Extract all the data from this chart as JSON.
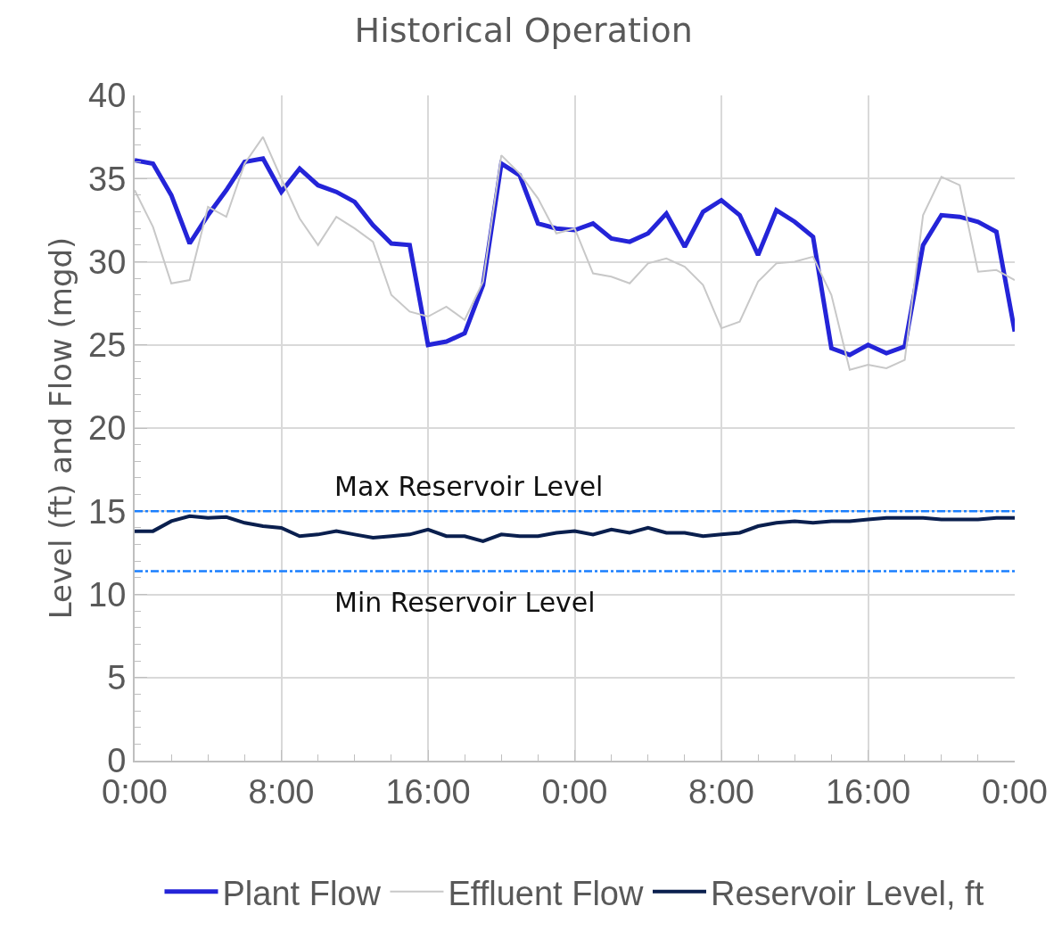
{
  "chart_data": {
    "type": "line",
    "title": "Historical Operation",
    "ylabel": "Level (ft) and Flow (mgd)",
    "x": [
      "--01-01T00:00",
      "--01-01T01:00",
      "--01-01T02:00",
      "--01-01T03:00",
      "--01-01T04:00",
      "--01-01T05:00",
      "--01-01T06:00",
      "--01-01T07:00",
      "--01-01T08:00",
      "--01-01T09:00",
      "--01-01T10:00",
      "--01-01T11:00",
      "--01-01T12:00",
      "--01-01T13:00",
      "--01-01T14:00",
      "--01-01T15:00",
      "--01-01T16:00",
      "--01-01T17:00",
      "--01-01T18:00",
      "--01-01T19:00",
      "--01-01T20:00",
      "--01-01T21:00",
      "--01-01T22:00",
      "--01-01T23:00",
      "--01-02T00:00",
      "--01-02T01:00",
      "--01-02T02:00",
      "--01-02T03:00",
      "--01-02T04:00",
      "--01-02T05:00",
      "--01-02T06:00",
      "--01-02T07:00",
      "--01-02T08:00",
      "--01-02T09:00",
      "--01-02T10:00",
      "--01-02T11:00",
      "--01-02T12:00",
      "--01-02T13:00",
      "--01-02T14:00",
      "--01-02T15:00",
      "--01-02T16:00",
      "--01-02T17:00",
      "--01-02T18:00",
      "--01-02T19:00",
      "--01-02T20:00",
      "--01-02T21:00",
      "--01-02T22:00",
      "--01-02T23:00",
      "--01-03T00:00"
    ],
    "series": [
      {
        "name": "Plant Flow",
        "color": "#2424d8",
        "values": [
          36.1,
          35.9,
          34,
          31.1,
          32.8,
          34.3,
          36,
          36.2,
          34.2,
          35.6,
          34.6,
          34.2,
          33.6,
          32.2,
          31.1,
          31,
          25,
          25.2,
          25.7,
          28.6,
          35.9,
          35.2,
          32.3,
          32,
          31.9,
          32.3,
          31.4,
          31.2,
          31.7,
          32.9,
          30.9,
          33,
          33.7,
          32.8,
          30.4,
          33.1,
          32.4,
          31.5,
          24.8,
          24.4,
          25,
          24.5,
          24.9,
          31,
          32.8,
          32.7,
          32.4,
          31.8,
          25.8
        ]
      },
      {
        "name": "Effluent Flow",
        "color": "#c8c8c8",
        "values": [
          34.3,
          32.1,
          28.7,
          28.9,
          33.3,
          32.7,
          35.9,
          37.5,
          35,
          32.6,
          31,
          32.7,
          32,
          31.2,
          28,
          27,
          26.7,
          27.3,
          26.5,
          28.8,
          36.4,
          35.3,
          33.8,
          31.7,
          32,
          29.3,
          29.1,
          28.7,
          29.9,
          30.2,
          29.7,
          28.6,
          26,
          26.4,
          28.8,
          29.9,
          30,
          30.3,
          28,
          23.5,
          23.8,
          23.6,
          24.1,
          32.8,
          35.1,
          34.6,
          29.4,
          29.5,
          28.9
        ]
      },
      {
        "name": "Reservoir Level, ft",
        "color": "#0a1f4e",
        "values": [
          13.8,
          13.8,
          14.4,
          14.7,
          14.6,
          14.65,
          14.3,
          14.1,
          14,
          13.5,
          13.6,
          13.8,
          13.6,
          13.4,
          13.5,
          13.6,
          13.9,
          13.5,
          13.5,
          13.2,
          13.6,
          13.5,
          13.5,
          13.7,
          13.8,
          13.6,
          13.9,
          13.7,
          14,
          13.7,
          13.7,
          13.5,
          13.6,
          13.7,
          14.1,
          14.3,
          14.4,
          14.3,
          14.4,
          14.4,
          14.5,
          14.6,
          14.6,
          14.6,
          14.5,
          14.5,
          14.5,
          14.6,
          14.6
        ]
      }
    ],
    "xlim": [
      "--01-01T00:00",
      "--01-03T00:00"
    ],
    "xticks": [
      {
        "value": "--01-01T00:00",
        "label": "0:00"
      },
      {
        "value": "--01-01T08:00",
        "label": "8:00"
      },
      {
        "value": "--01-01T16:00",
        "label": "16:00"
      },
      {
        "value": "--01-02T00:00",
        "label": "0:00"
      },
      {
        "value": "--01-02T08:00",
        "label": "8:00"
      },
      {
        "value": "--01-02T16:00",
        "label": "16:00"
      },
      {
        "value": "--01-03T00:00",
        "label": "0:00"
      }
    ],
    "ylim": [
      0,
      40
    ],
    "yticks": [
      0,
      5,
      10,
      15,
      20,
      25,
      30,
      35,
      40
    ],
    "ref_lines": [
      {
        "axis": "y",
        "value": 15,
        "label": "Max Reservoir Level",
        "color": "#1a7fff",
        "line_style": "dashdot"
      },
      {
        "axis": "y",
        "value": 11.4,
        "label": "Min Reservoir Level",
        "color": "#1a7fff",
        "line_style": "dashdot"
      }
    ],
    "grid": true,
    "legend": "bottom",
    "marker": "none",
    "line_style": "solid"
  }
}
